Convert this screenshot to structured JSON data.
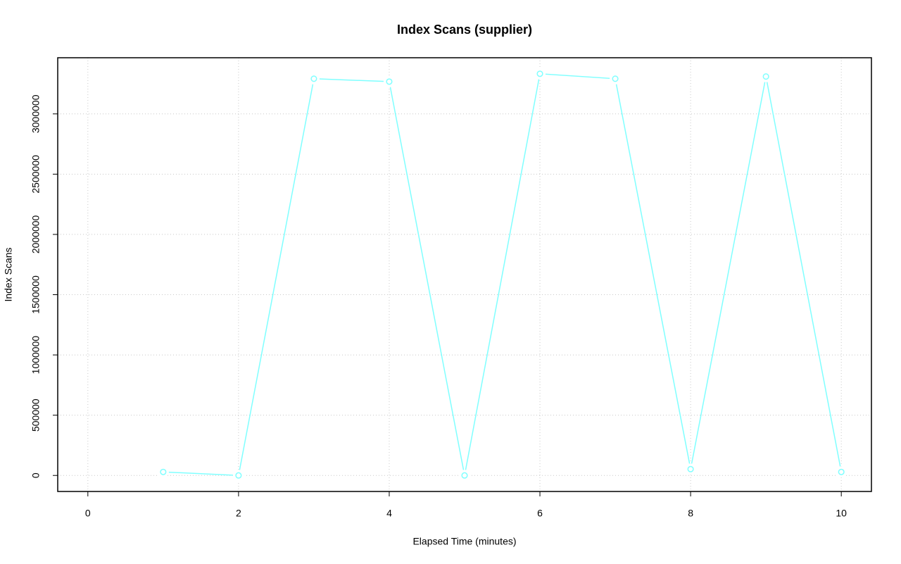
{
  "chart_data": {
    "type": "line",
    "title": "Index Scans (supplier)",
    "x_label": "Elapsed Time (minutes)",
    "y_label": "Index Scans",
    "x": [
      1,
      2,
      3,
      4,
      5,
      6,
      7,
      8,
      9,
      10
    ],
    "series": [
      {
        "color": "#80ffff",
        "values": [
          29000,
          0,
          3292000,
          3268000,
          0,
          3333000,
          3292000,
          52500,
          3310000,
          29000
        ]
      }
    ],
    "xlim": [
      -0.4,
      10.4
    ],
    "xticks": [
      0,
      2,
      4,
      6,
      8,
      10
    ],
    "ylim": [
      -133000,
      3466000
    ],
    "yticks": [
      0,
      500000,
      1000000,
      1500000,
      2000000,
      2500000,
      3000000
    ],
    "grid": true
  }
}
